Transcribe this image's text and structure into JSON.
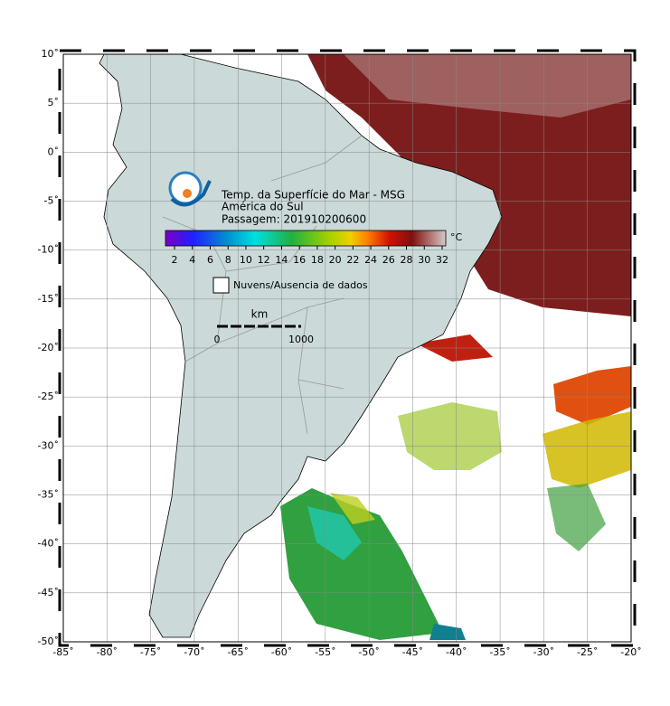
{
  "map": {
    "title": [
      "Temp. da Superfície do Mar - MSG",
      "América do Sul",
      "Passagem: 201910200600"
    ],
    "colorbar": {
      "ticks": [
        2,
        4,
        6,
        8,
        10,
        12,
        14,
        16,
        18,
        20,
        22,
        24,
        26,
        28,
        30,
        32
      ],
      "unit": "°C"
    },
    "legend": "Nuvens/Ausencia de dados",
    "scale": {
      "unit": "km",
      "labels": [
        "0",
        "1000"
      ]
    },
    "lon_ticks": [
      {
        "value": -85,
        "label": "-85˚"
      },
      {
        "value": -80,
        "label": "-80˚"
      },
      {
        "value": -75,
        "label": "-75˚"
      },
      {
        "value": -70,
        "label": "-70˚"
      },
      {
        "value": -65,
        "label": "-65˚"
      },
      {
        "value": -60,
        "label": "-60˚"
      },
      {
        "value": -55,
        "label": "-55˚"
      },
      {
        "value": -50,
        "label": "-50˚"
      },
      {
        "value": -45,
        "label": "-45˚"
      },
      {
        "value": -40,
        "label": "-40˚"
      },
      {
        "value": -35,
        "label": "-35˚"
      },
      {
        "value": -30,
        "label": "-30˚"
      },
      {
        "value": -25,
        "label": "-25˚"
      },
      {
        "value": -20,
        "label": "-20˚"
      }
    ],
    "lat_ticks": [
      {
        "value": 10,
        "label": "10˚"
      },
      {
        "value": 5,
        "label": "5˚"
      },
      {
        "value": 0,
        "label": "0˚"
      },
      {
        "value": -5,
        "label": "-5˚"
      },
      {
        "value": -10,
        "label": "-10˚"
      },
      {
        "value": -15,
        "label": "-15˚"
      },
      {
        "value": -20,
        "label": "-20˚"
      },
      {
        "value": -25,
        "label": "-25˚"
      },
      {
        "value": -30,
        "label": "-30˚"
      },
      {
        "value": -35,
        "label": "-35˚"
      },
      {
        "value": -40,
        "label": "-40˚"
      },
      {
        "value": -45,
        "label": "-45˚"
      },
      {
        "value": -50,
        "label": "-50˚"
      }
    ]
  }
}
